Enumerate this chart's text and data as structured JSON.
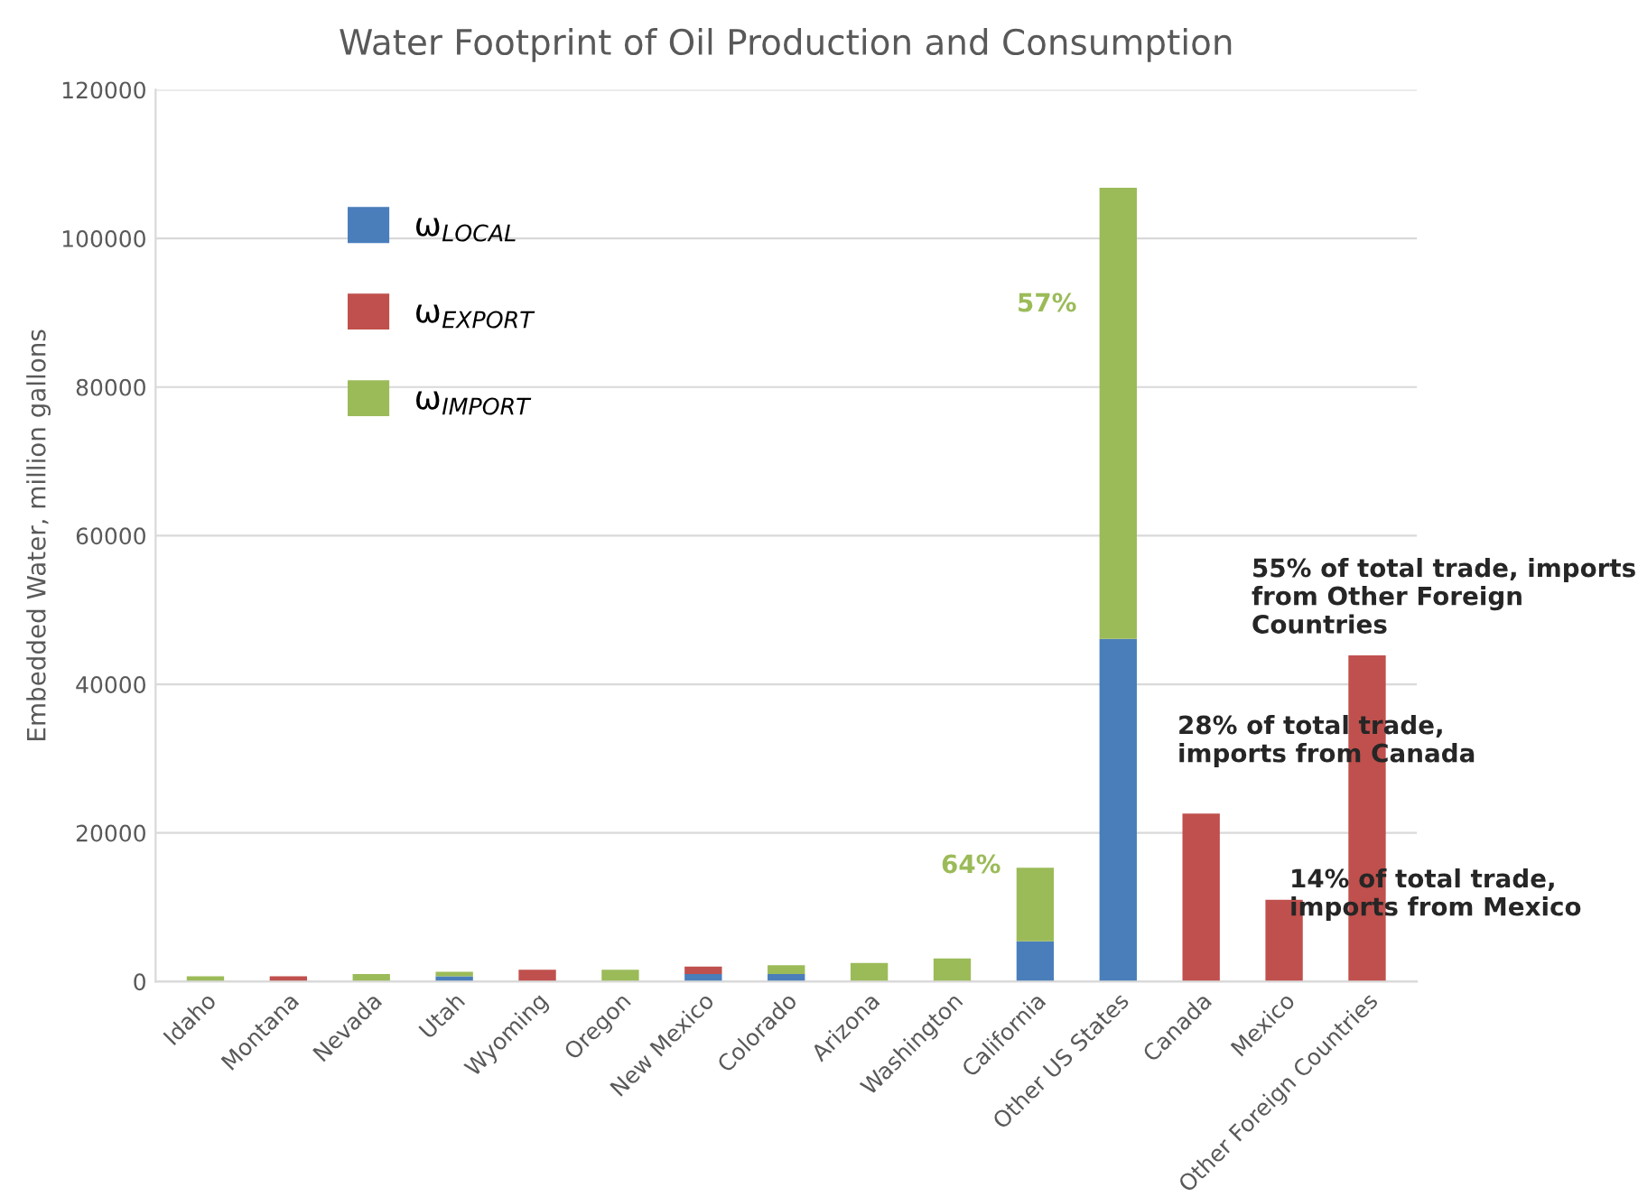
{
  "chart_data": {
    "type": "bar",
    "stacked": true,
    "title": "Water Footprint of Oil Production and Consumption",
    "ylabel": "Embedded Water, million gallons",
    "categories": [
      "Idaho",
      "Montana",
      "Nevada",
      "Utah",
      "Wyoming",
      "Oregon",
      "New Mexico",
      "Colorado",
      "Arizona",
      "Washington",
      "California",
      "Other US States",
      "Canada",
      "Mexico",
      "Other Foreign Countries"
    ],
    "series": [
      {
        "name": "ω$_{LOCAL}$",
        "color": "#4a7ebb",
        "values": [
          0,
          null,
          0,
          700,
          0,
          0,
          1000,
          1000,
          0,
          0,
          5400,
          46100,
          0,
          0,
          0
        ]
      },
      {
        "name": "ω$_{EXPORT}$",
        "color": "#c0504d",
        "values": [
          0,
          700,
          0,
          0,
          1600,
          0,
          1000,
          0,
          0,
          0,
          0,
          0,
          22600,
          11000,
          43900
        ]
      },
      {
        "name": "ω$_{IMPORT}$",
        "color": "#9bbb59",
        "values": [
          700,
          0,
          1000,
          600,
          0,
          1600,
          0,
          1200,
          2500,
          3100,
          9900,
          60700,
          0,
          0,
          0
        ]
      }
    ],
    "ylim": [
      0,
      120000
    ],
    "yticks": [
      0,
      20000,
      40000,
      60000,
      80000,
      100000,
      120000
    ],
    "grid": "y",
    "legend": "top left",
    "annotations": [
      "57%",
      "64%",
      "55% of total trade, imports\nfrom Other Foreign\nCountries",
      "28% of total trade,\nimports from Canada",
      "14% of total trade,\nimports from Mexico"
    ]
  }
}
